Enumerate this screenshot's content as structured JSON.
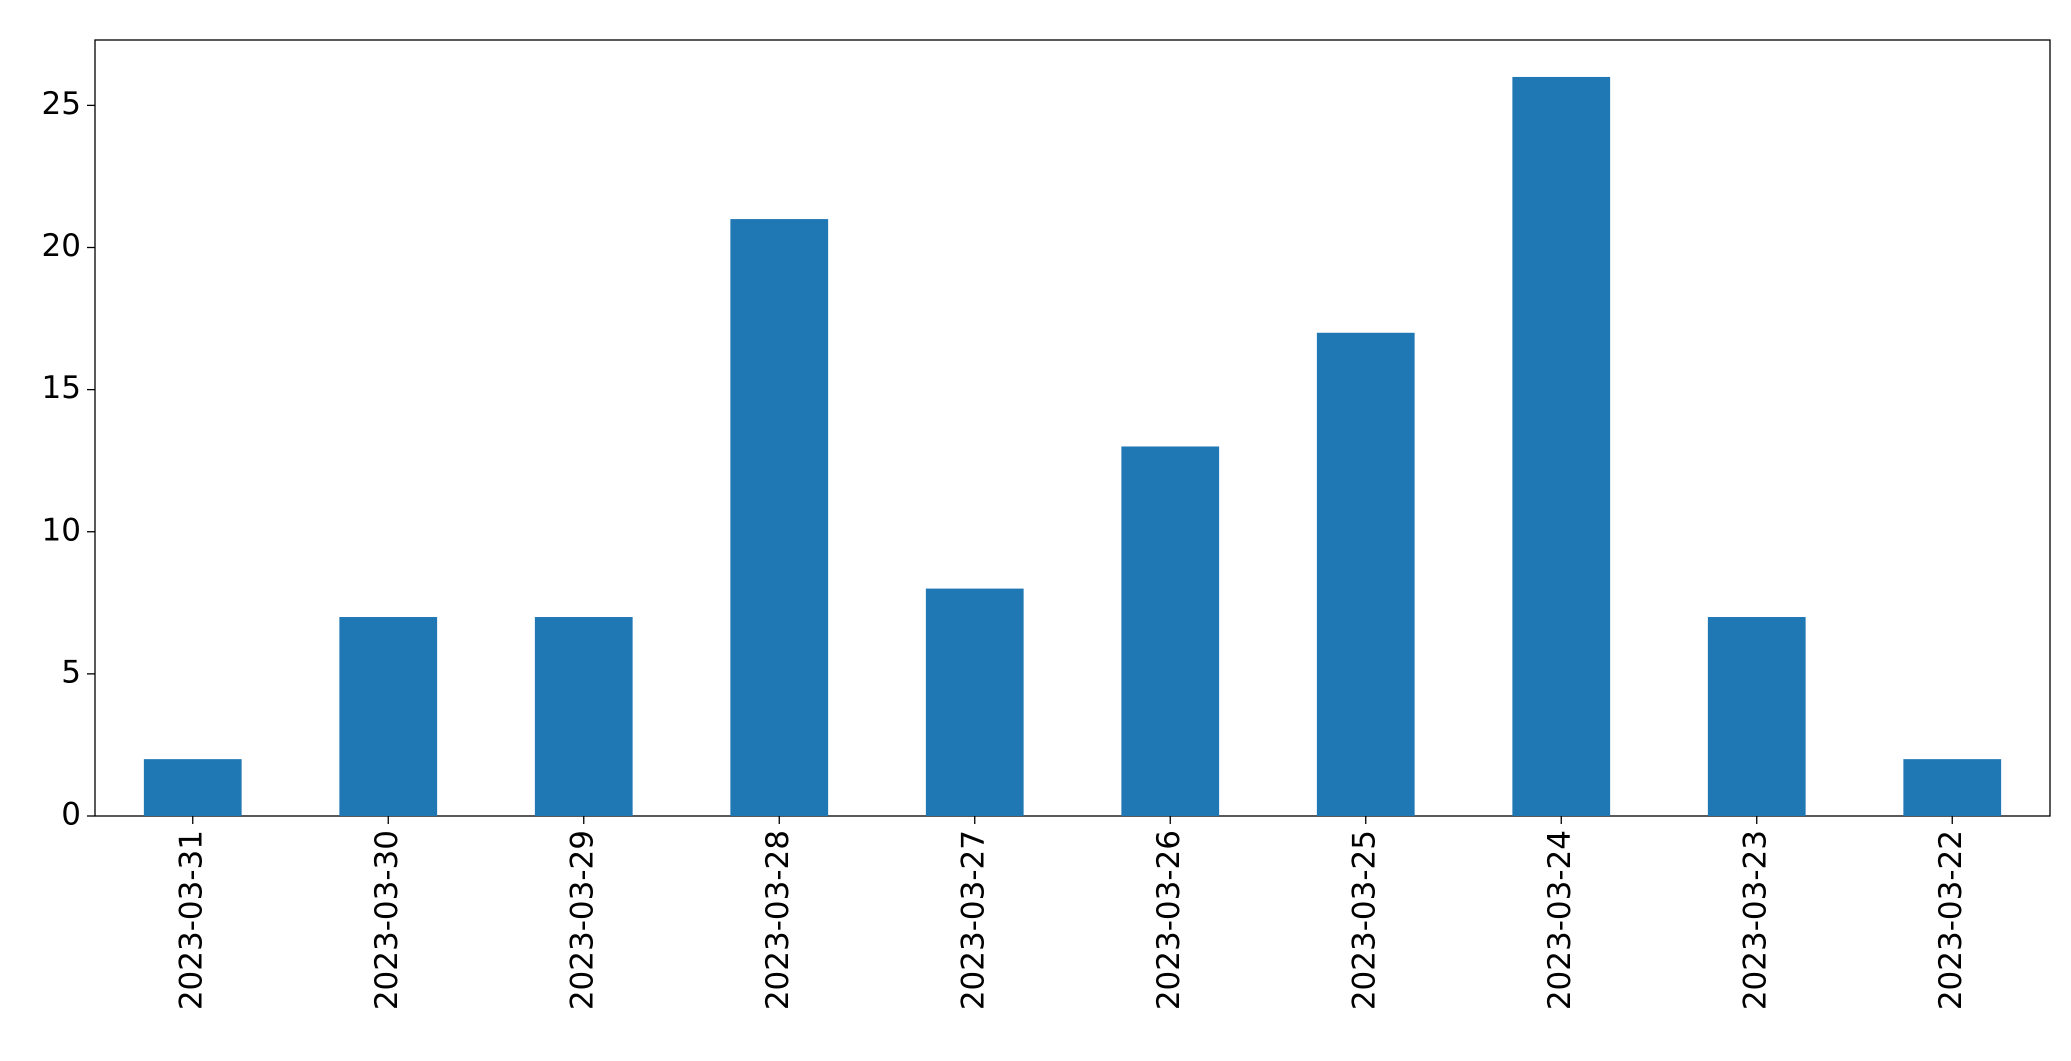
{
  "chart_data": {
    "type": "bar",
    "categories": [
      "2023-03-31",
      "2023-03-30",
      "2023-03-29",
      "2023-03-28",
      "2023-03-27",
      "2023-03-26",
      "2023-03-25",
      "2023-03-24",
      "2023-03-23",
      "2023-03-22"
    ],
    "values": [
      2,
      7,
      7,
      21,
      8,
      13,
      17,
      26,
      7,
      2
    ],
    "color": "#1f77b4",
    "ylim": [
      0,
      27.3
    ],
    "yticks": [
      0,
      5,
      10,
      15,
      20,
      25
    ],
    "grid": false
  }
}
